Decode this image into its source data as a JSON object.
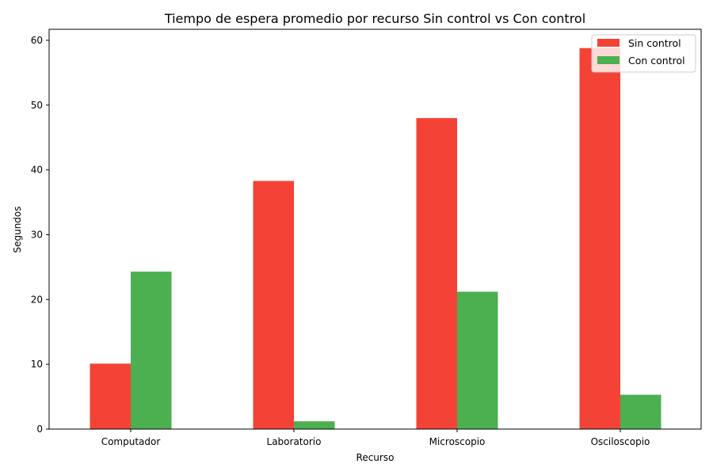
{
  "chart_data": {
    "type": "bar",
    "title": "Tiempo de espera promedio por recurso Sin control vs Con control",
    "xlabel": "Recurso",
    "ylabel": "Segundos",
    "categories": [
      "Computador",
      "Laboratorio",
      "Microscopio",
      "Osciloscopio"
    ],
    "series": [
      {
        "name": "Sin control",
        "color": "#f44336",
        "values": [
          10.1,
          38.3,
          48.0,
          58.8
        ]
      },
      {
        "name": "Con control",
        "color": "#4caf50",
        "values": [
          24.3,
          1.2,
          21.2,
          5.3
        ]
      }
    ],
    "ylim": [
      0,
      61.7
    ],
    "yticks": [
      0,
      10,
      20,
      30,
      40,
      50,
      60
    ],
    "grid": false,
    "legend_position": "top-right"
  }
}
